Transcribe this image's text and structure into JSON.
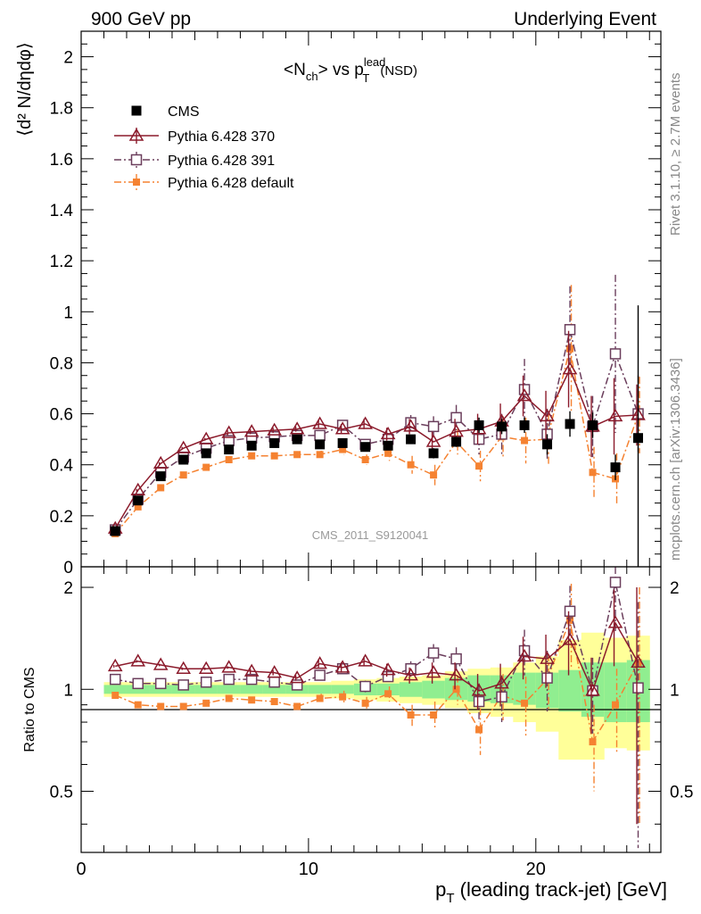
{
  "header": {
    "left": "900 GeV pp",
    "right": "Underlying Event"
  },
  "side_labels": {
    "rivet": "Rivet 3.1.10, ≥ 2.7M events",
    "mcplots": "mcplots.cern.ch [arXiv:1306.3436]"
  },
  "watermark": "CMS_2011_S9120041",
  "plot_title": {
    "n": "N",
    "n_sub": "ch",
    "vs": "> vs p",
    "lead_sup": "lead",
    "t_sub": "T",
    "nsd": "(NSD)"
  },
  "y_label": "⟨d² N/dηdφ⟩",
  "ratio_label": "Ratio to CMS",
  "x_label_main": "p",
  "x_label_sub": "T",
  "x_label_rest": " (leading track-jet) [GeV]",
  "legend": [
    {
      "label": "CMS",
      "color": "#000000",
      "marker": "filled-square",
      "line": "none"
    },
    {
      "label": "Pythia 6.428 370",
      "color": "#8b1a2b",
      "marker": "open-triangle",
      "line": "solid"
    },
    {
      "label": "Pythia 6.428 391",
      "color": "#6b3e5c",
      "marker": "open-square",
      "line": "dashdot"
    },
    {
      "label": "Pythia 6.428 default",
      "color": "#f58231",
      "marker": "filled-square-small",
      "line": "dashdot"
    }
  ],
  "colors": {
    "cms": "#000000",
    "p370": "#8b1a2b",
    "p391": "#6b3e5c",
    "pdefault": "#f58231",
    "band_inner": "#90ee90",
    "band_outer": "#ffff99"
  },
  "chart_data": [
    {
      "type": "scatter",
      "title": "<Nch> vs pT lead (NSD)",
      "xlabel": "pT (leading track-jet) [GeV]",
      "ylabel": "⟨d² N/dηdφ⟩",
      "xlim": [
        0,
        25.5
      ],
      "ylim": [
        0,
        2.1
      ],
      "xticks": [
        0,
        10,
        20
      ],
      "yticks": [
        0,
        0.2,
        0.4,
        0.6,
        0.8,
        1,
        1.2,
        1.4,
        1.6,
        1.8,
        2
      ],
      "ytick_labels": [
        "0",
        "0.2",
        "0.4",
        "0.6",
        "0.8",
        "1",
        "1.2",
        "1.4",
        "1.6",
        "1.8",
        "2"
      ],
      "x": [
        1.5,
        2.5,
        3.5,
        4.5,
        5.5,
        6.5,
        7.5,
        8.5,
        9.5,
        10.5,
        11.5,
        12.5,
        13.5,
        14.5,
        15.5,
        16.5,
        17.5,
        18.5,
        19.5,
        20.5,
        21.5,
        22.5,
        23.5,
        24.5
      ],
      "series": [
        {
          "name": "CMS",
          "values": [
            0.14,
            0.26,
            0.355,
            0.42,
            0.445,
            0.46,
            0.475,
            0.485,
            0.5,
            0.48,
            0.485,
            0.47,
            0.475,
            0.5,
            0.445,
            0.49,
            0.555,
            0.55,
            0.555,
            0.48,
            0.56,
            0.555,
            0.39,
            0.505
          ],
          "errors": [
            0.005,
            0.005,
            0.005,
            0.005,
            0.005,
            0.005,
            0.005,
            0.005,
            0.005,
            0.01,
            0.01,
            0.01,
            0.01,
            0.01,
            0.02,
            0.02,
            0.03,
            0.03,
            0.03,
            0.04,
            0.05,
            0.05,
            0.05,
            0.52
          ]
        },
        {
          "name": "Pythia 6.428 370",
          "values": [
            0.15,
            0.3,
            0.405,
            0.465,
            0.5,
            0.525,
            0.53,
            0.535,
            0.54,
            0.56,
            0.54,
            0.56,
            0.52,
            0.55,
            0.49,
            0.53,
            0.54,
            0.57,
            0.67,
            0.59,
            0.775,
            0.55,
            0.59,
            0.595
          ],
          "errors": [
            0.005,
            0.005,
            0.005,
            0.005,
            0.005,
            0.01,
            0.01,
            0.01,
            0.01,
            0.015,
            0.02,
            0.02,
            0.025,
            0.03,
            0.04,
            0.05,
            0.06,
            0.07,
            0.08,
            0.1,
            0.15,
            0.12,
            0.15,
            0.12
          ]
        },
        {
          "name": "Pythia 6.428 391",
          "values": [
            0.145,
            0.265,
            0.37,
            0.43,
            0.465,
            0.495,
            0.505,
            0.51,
            0.515,
            0.515,
            0.555,
            0.48,
            0.5,
            0.565,
            0.55,
            0.585,
            0.5,
            0.52,
            0.695,
            0.52,
            0.93,
            0.55,
            0.835,
            0.6
          ],
          "errors": [
            0.005,
            0.005,
            0.005,
            0.005,
            0.005,
            0.01,
            0.01,
            0.01,
            0.01,
            0.015,
            0.02,
            0.02,
            0.025,
            0.03,
            0.04,
            0.05,
            0.06,
            0.08,
            0.12,
            0.1,
            0.17,
            0.12,
            0.31,
            0.15
          ]
        },
        {
          "name": "Pythia 6.428 default",
          "values": [
            0.13,
            0.235,
            0.31,
            0.36,
            0.39,
            0.42,
            0.435,
            0.435,
            0.44,
            0.44,
            0.46,
            0.42,
            0.445,
            0.4,
            0.36,
            0.49,
            0.395,
            0.51,
            0.495,
            0.5,
            0.855,
            0.37,
            0.345,
            0.595
          ],
          "errors": [
            0.005,
            0.005,
            0.005,
            0.005,
            0.005,
            0.01,
            0.01,
            0.01,
            0.01,
            0.015,
            0.02,
            0.02,
            0.03,
            0.035,
            0.04,
            0.05,
            0.06,
            0.08,
            0.09,
            0.1,
            0.25,
            0.1,
            0.1,
            0.15
          ]
        }
      ]
    },
    {
      "type": "scatter",
      "ylabel": "Ratio to CMS",
      "xlim": [
        0,
        25.5
      ],
      "ylim": [
        0.33,
        2.3
      ],
      "log_y": true,
      "yticks": [
        0.5,
        1,
        2
      ],
      "ytick_labels": [
        "0.5",
        "1",
        "2"
      ],
      "x": [
        1.5,
        2.5,
        3.5,
        4.5,
        5.5,
        6.5,
        7.5,
        8.5,
        9.5,
        10.5,
        11.5,
        12.5,
        13.5,
        14.5,
        15.5,
        16.5,
        17.5,
        18.5,
        19.5,
        20.5,
        21.5,
        22.5,
        23.5,
        24.5
      ],
      "band_inner": [
        [
          0.97,
          1.03
        ],
        [
          0.97,
          1.03
        ],
        [
          0.97,
          1.03
        ],
        [
          0.97,
          1.03
        ],
        [
          0.97,
          1.03
        ],
        [
          0.97,
          1.03
        ],
        [
          0.97,
          1.03
        ],
        [
          0.97,
          1.03
        ],
        [
          0.97,
          1.03
        ],
        [
          0.97,
          1.03
        ],
        [
          0.97,
          1.03
        ],
        [
          0.96,
          1.04
        ],
        [
          0.96,
          1.04
        ],
        [
          0.95,
          1.05
        ],
        [
          0.94,
          1.06
        ],
        [
          0.93,
          1.08
        ],
        [
          0.92,
          1.1
        ],
        [
          0.91,
          1.1
        ],
        [
          0.9,
          1.12
        ],
        [
          0.88,
          1.12
        ],
        [
          0.86,
          1.14
        ],
        [
          0.83,
          1.2
        ],
        [
          0.8,
          1.2
        ],
        [
          0.8,
          1.22
        ]
      ],
      "band_outer": [
        [
          0.95,
          1.05
        ],
        [
          0.95,
          1.05
        ],
        [
          0.95,
          1.05
        ],
        [
          0.95,
          1.05
        ],
        [
          0.95,
          1.05
        ],
        [
          0.95,
          1.05
        ],
        [
          0.95,
          1.05
        ],
        [
          0.95,
          1.05
        ],
        [
          0.95,
          1.05
        ],
        [
          0.95,
          1.05
        ],
        [
          0.94,
          1.06
        ],
        [
          0.93,
          1.07
        ],
        [
          0.92,
          1.08
        ],
        [
          0.91,
          1.09
        ],
        [
          0.9,
          1.1
        ],
        [
          0.88,
          1.13
        ],
        [
          0.85,
          1.15
        ],
        [
          0.83,
          1.16
        ],
        [
          0.8,
          1.2
        ],
        [
          0.75,
          1.25
        ],
        [
          0.62,
          1.4
        ],
        [
          0.62,
          1.47
        ],
        [
          0.67,
          1.42
        ],
        [
          0.66,
          1.44
        ]
      ],
      "series": [
        {
          "name": "Pythia 6.428 370",
          "values": [
            1.17,
            1.21,
            1.18,
            1.15,
            1.15,
            1.16,
            1.13,
            1.12,
            1.08,
            1.19,
            1.16,
            1.21,
            1.14,
            1.1,
            1.12,
            1.1,
            0.99,
            1.04,
            1.25,
            1.23,
            1.4,
            0.99,
            1.57,
            1.2
          ],
          "errors": [
            0.01,
            0.01,
            0.01,
            0.01,
            0.01,
            0.01,
            0.02,
            0.02,
            0.02,
            0.03,
            0.04,
            0.04,
            0.05,
            0.06,
            0.08,
            0.1,
            0.12,
            0.15,
            0.18,
            0.22,
            0.3,
            0.25,
            0.4,
            0.8
          ]
        },
        {
          "name": "Pythia 6.428 391",
          "values": [
            1.07,
            1.04,
            1.04,
            1.03,
            1.05,
            1.07,
            1.07,
            1.05,
            1.03,
            1.1,
            1.15,
            1.02,
            1.09,
            1.15,
            1.28,
            1.23,
            0.92,
            0.95,
            1.3,
            1.08,
            1.7,
            0.99,
            2.07,
            1.01
          ],
          "errors": [
            0.01,
            0.01,
            0.01,
            0.01,
            0.01,
            0.01,
            0.02,
            0.02,
            0.02,
            0.03,
            0.04,
            0.04,
            0.05,
            0.06,
            0.08,
            0.1,
            0.12,
            0.15,
            0.2,
            0.22,
            0.32,
            0.25,
            0.6,
            0.8
          ]
        },
        {
          "name": "Pythia 6.428 default",
          "values": [
            0.96,
            0.9,
            0.89,
            0.89,
            0.91,
            0.94,
            0.93,
            0.92,
            0.89,
            0.94,
            0.95,
            0.91,
            0.97,
            0.84,
            0.84,
            1.0,
            0.76,
            0.96,
            0.91,
            1.07,
            1.6,
            0.7,
            0.9,
            1.2
          ],
          "errors": [
            0.01,
            0.01,
            0.01,
            0.01,
            0.01,
            0.01,
            0.02,
            0.02,
            0.02,
            0.03,
            0.04,
            0.04,
            0.05,
            0.06,
            0.08,
            0.1,
            0.12,
            0.15,
            0.18,
            0.2,
            0.45,
            0.2,
            0.25,
            0.8
          ]
        }
      ]
    }
  ]
}
